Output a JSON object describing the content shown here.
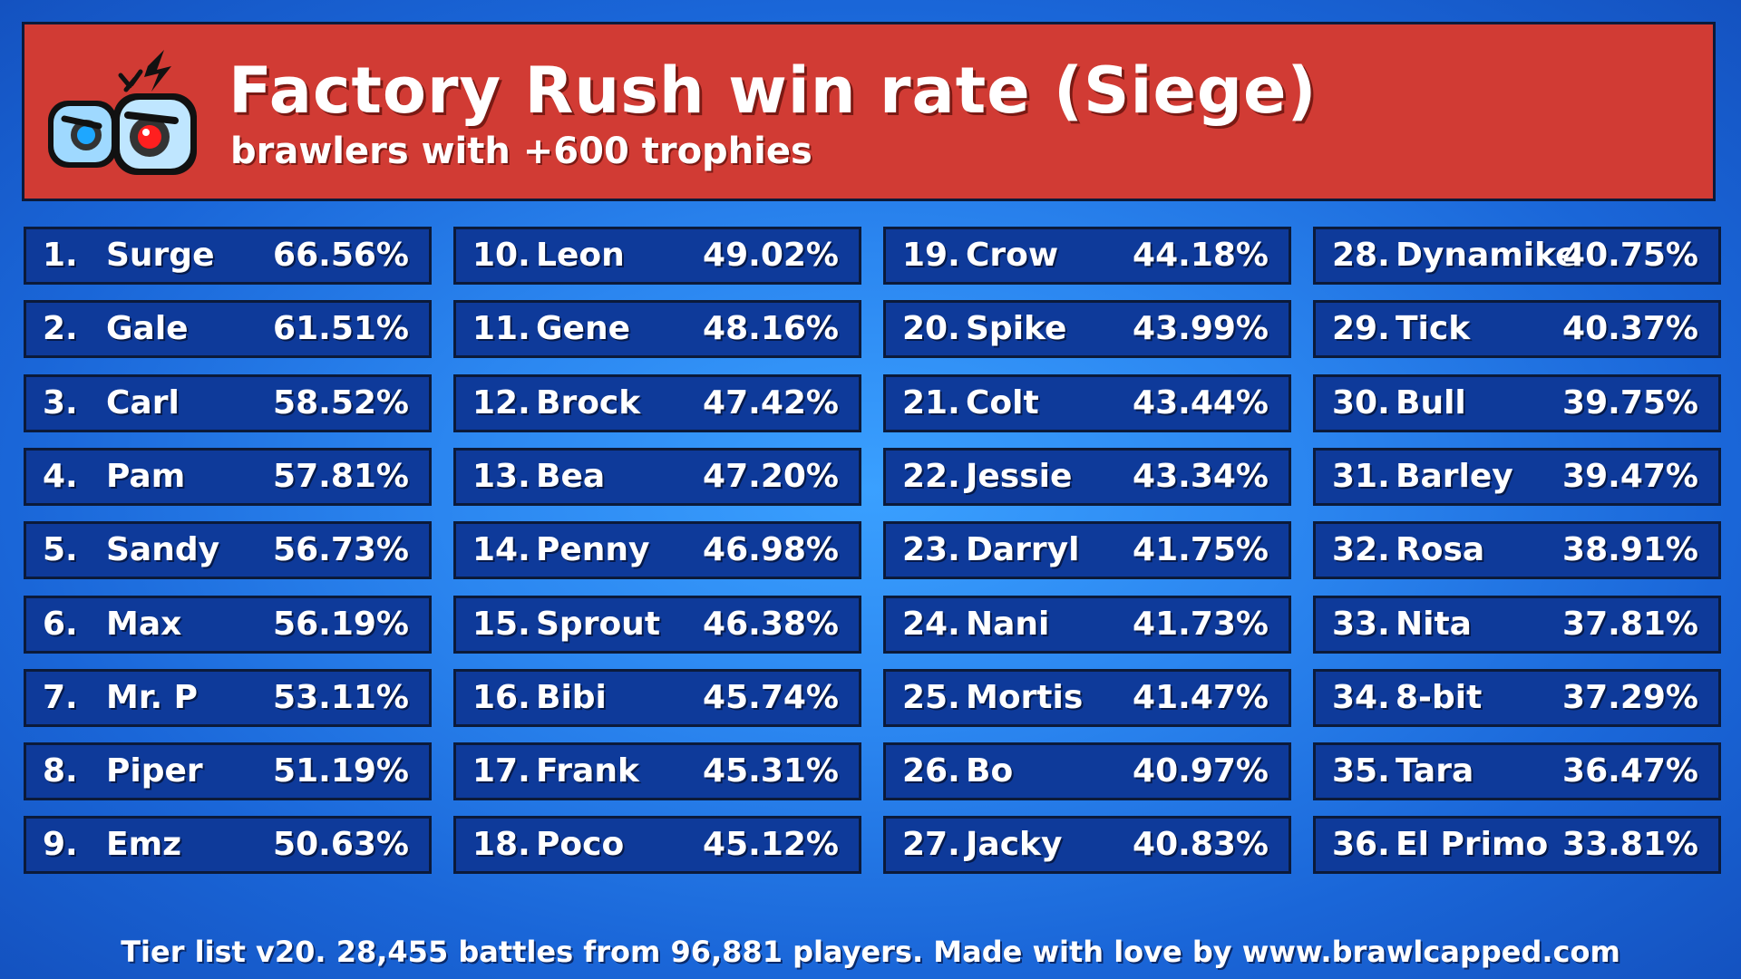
{
  "header": {
    "title": "Factory Rush win rate (Siege)",
    "subtitle": "brawlers with +600 trophies"
  },
  "colors": {
    "header_bg": "#d13b34",
    "row_bg": "#0e3a9a",
    "background": "#2b86f0"
  },
  "rows": [
    {
      "rank": "1.",
      "name": "Surge",
      "rate": "66.56%"
    },
    {
      "rank": "2.",
      "name": "Gale",
      "rate": "61.51%"
    },
    {
      "rank": "3.",
      "name": "Carl",
      "rate": "58.52%"
    },
    {
      "rank": "4.",
      "name": "Pam",
      "rate": "57.81%"
    },
    {
      "rank": "5.",
      "name": "Sandy",
      "rate": "56.73%"
    },
    {
      "rank": "6.",
      "name": "Max",
      "rate": "56.19%"
    },
    {
      "rank": "7.",
      "name": "Mr. P",
      "rate": "53.11%"
    },
    {
      "rank": "8.",
      "name": "Piper",
      "rate": "51.19%"
    },
    {
      "rank": "9.",
      "name": "Emz",
      "rate": "50.63%"
    },
    {
      "rank": "10.",
      "name": "Leon",
      "rate": "49.02%"
    },
    {
      "rank": "11.",
      "name": "Gene",
      "rate": "48.16%"
    },
    {
      "rank": "12.",
      "name": "Brock",
      "rate": "47.42%"
    },
    {
      "rank": "13.",
      "name": "Bea",
      "rate": "47.20%"
    },
    {
      "rank": "14.",
      "name": "Penny",
      "rate": "46.98%"
    },
    {
      "rank": "15.",
      "name": "Sprout",
      "rate": "46.38%"
    },
    {
      "rank": "16.",
      "name": "Bibi",
      "rate": "45.74%"
    },
    {
      "rank": "17.",
      "name": "Frank",
      "rate": "45.31%"
    },
    {
      "rank": "18.",
      "name": "Poco",
      "rate": "45.12%"
    },
    {
      "rank": "19.",
      "name": "Crow",
      "rate": "44.18%"
    },
    {
      "rank": "20.",
      "name": "Spike",
      "rate": "43.99%"
    },
    {
      "rank": "21.",
      "name": "Colt",
      "rate": "43.44%"
    },
    {
      "rank": "22.",
      "name": "Jessie",
      "rate": "43.34%"
    },
    {
      "rank": "23.",
      "name": "Darryl",
      "rate": "41.75%"
    },
    {
      "rank": "24.",
      "name": "Nani",
      "rate": "41.73%"
    },
    {
      "rank": "25.",
      "name": "Mortis",
      "rate": "41.47%"
    },
    {
      "rank": "26.",
      "name": "Bo",
      "rate": "40.97%"
    },
    {
      "rank": "27.",
      "name": "Jacky",
      "rate": "40.83%"
    },
    {
      "rank": "28.",
      "name": "Dynamike",
      "rate": "40.75%"
    },
    {
      "rank": "29.",
      "name": "Tick",
      "rate": "40.37%"
    },
    {
      "rank": "30.",
      "name": "Bull",
      "rate": "39.75%"
    },
    {
      "rank": "31.",
      "name": "Barley",
      "rate": "39.47%"
    },
    {
      "rank": "32.",
      "name": "Rosa",
      "rate": "38.91%"
    },
    {
      "rank": "33.",
      "name": "Nita",
      "rate": "37.81%"
    },
    {
      "rank": "34.",
      "name": "8-bit",
      "rate": "37.29%"
    },
    {
      "rank": "35.",
      "name": "Tara",
      "rate": "36.47%"
    },
    {
      "rank": "36.",
      "name": "El Primo",
      "rate": "33.81%"
    }
  ],
  "footer": "Tier list v20. 28,455 battles from 96,881 players. Made with love by www.brawlcapped.com"
}
